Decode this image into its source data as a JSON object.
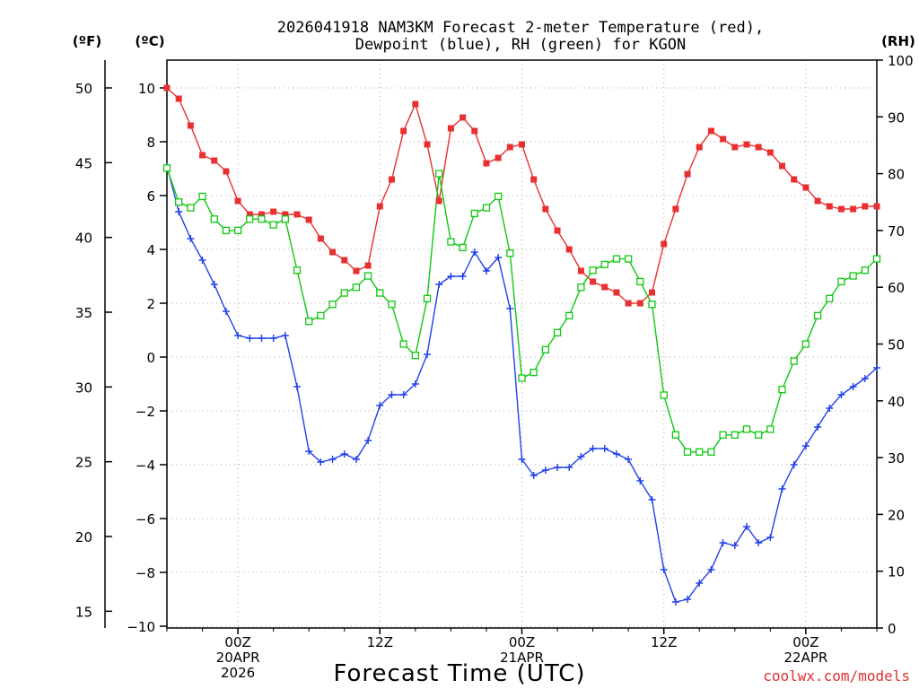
{
  "title_line1": "2026041918 NAM3KM Forecast 2-meter Temperature (red),",
  "title_line2": "Dewpoint (blue), RH (green) for KGON",
  "credit": "coolwx.com/models",
  "colors": {
    "temperature": "#e83030",
    "dewpoint": "#2040e8",
    "rh": "#10c810"
  },
  "chart_data": {
    "type": "line",
    "title": "2026041918 NAM3KM Forecast 2-meter Temperature (red), Dewpoint (blue), RH (green) for KGON",
    "xlabel": "Forecast Time (UTC)",
    "x_unit": "forecast hour",
    "xlim": [
      0,
      60
    ],
    "x_ticks": [
      {
        "hour": 6,
        "lines": [
          "00Z",
          "20APR",
          "2026"
        ]
      },
      {
        "hour": 18,
        "lines": [
          "12Z"
        ]
      },
      {
        "hour": 30,
        "lines": [
          "00Z",
          "21APR"
        ]
      },
      {
        "hour": 42,
        "lines": [
          "12Z"
        ]
      },
      {
        "hour": 54,
        "lines": [
          "00Z",
          "22APR"
        ]
      }
    ],
    "y_left_celsius": {
      "label": "(ºC)",
      "ylim": [
        -10,
        10
      ],
      "ticks": [
        -10,
        -8,
        -6,
        -4,
        -2,
        0,
        2,
        4,
        6,
        8,
        10
      ]
    },
    "y_left_fahrenheit": {
      "label": "(ºF)",
      "ticks": [
        15,
        20,
        25,
        30,
        35,
        40,
        45,
        50
      ]
    },
    "y_right_rh": {
      "label": "(RH)",
      "ylim": [
        0,
        100
      ],
      "ticks": [
        0,
        10,
        20,
        30,
        40,
        50,
        60,
        70,
        80,
        90,
        100
      ]
    },
    "hours": [
      0,
      1,
      2,
      3,
      4,
      5,
      6,
      7,
      8,
      9,
      10,
      11,
      12,
      13,
      14,
      15,
      16,
      17,
      18,
      19,
      20,
      21,
      22,
      23,
      24,
      25,
      26,
      27,
      28,
      29,
      30,
      31,
      32,
      33,
      34,
      35,
      36,
      37,
      38,
      39,
      40,
      41,
      42,
      43,
      44,
      45,
      46,
      47,
      48,
      49,
      50,
      51,
      52,
      53,
      54,
      55,
      56,
      57,
      58,
      59,
      60
    ],
    "series": [
      {
        "name": "Temperature",
        "axis": "celsius",
        "color": "#e83030",
        "marker": "filled-square",
        "values": [
          10.0,
          9.6,
          8.6,
          7.5,
          7.3,
          6.9,
          5.8,
          5.3,
          5.3,
          5.4,
          5.3,
          5.3,
          5.1,
          4.4,
          3.9,
          3.6,
          3.2,
          3.4,
          5.6,
          6.6,
          8.4,
          9.4,
          7.9,
          5.8,
          8.5,
          8.9,
          8.4,
          7.2,
          7.4,
          7.8,
          7.9,
          6.6,
          5.5,
          4.7,
          4.0,
          3.2,
          2.8,
          2.6,
          2.4,
          2.0,
          2.0,
          2.4,
          4.2,
          5.5,
          6.8,
          7.8,
          8.4,
          8.1,
          7.8,
          7.9,
          7.8,
          7.6,
          7.1,
          6.6,
          6.3,
          5.8,
          5.6,
          5.5,
          5.5,
          5.6,
          5.6
        ]
      },
      {
        "name": "Dewpoint",
        "axis": "celsius",
        "color": "#2040e8",
        "marker": "plus",
        "values": [
          7.1,
          5.4,
          4.4,
          3.6,
          2.7,
          1.7,
          0.8,
          0.7,
          0.7,
          0.7,
          0.8,
          -1.1,
          -3.5,
          -3.9,
          -3.8,
          -3.6,
          -3.8,
          -3.1,
          -1.8,
          -1.4,
          -1.4,
          -1.0,
          0.1,
          2.7,
          3.0,
          3.0,
          3.9,
          3.2,
          3.7,
          1.8,
          -3.8,
          -4.4,
          -4.2,
          -4.1,
          -4.1,
          -3.7,
          -3.4,
          -3.4,
          -3.6,
          -3.8,
          -4.6,
          -5.3,
          -7.9,
          -9.1,
          -9.0,
          -8.4,
          -7.9,
          -6.9,
          -7.0,
          -6.3,
          -6.9,
          -6.7,
          -4.9,
          -4.0,
          -3.3,
          -2.6,
          -1.9,
          -1.4,
          -1.1,
          -0.8,
          -0.4
        ]
      },
      {
        "name": "RH",
        "axis": "rh",
        "color": "#10c810",
        "marker": "open-square",
        "values": [
          81,
          75,
          74,
          76,
          72,
          70,
          70,
          72,
          72,
          71,
          72,
          63,
          54,
          55,
          57,
          59,
          60,
          62,
          59,
          57,
          50,
          48,
          58,
          80,
          68,
          67,
          73,
          74,
          76,
          66,
          44,
          45,
          49,
          52,
          55,
          60,
          63,
          64,
          65,
          65,
          61,
          57,
          41,
          34,
          31,
          31,
          31,
          34,
          34,
          35,
          34,
          35,
          42,
          47,
          50,
          55,
          58,
          61,
          62,
          63,
          65
        ]
      }
    ]
  }
}
